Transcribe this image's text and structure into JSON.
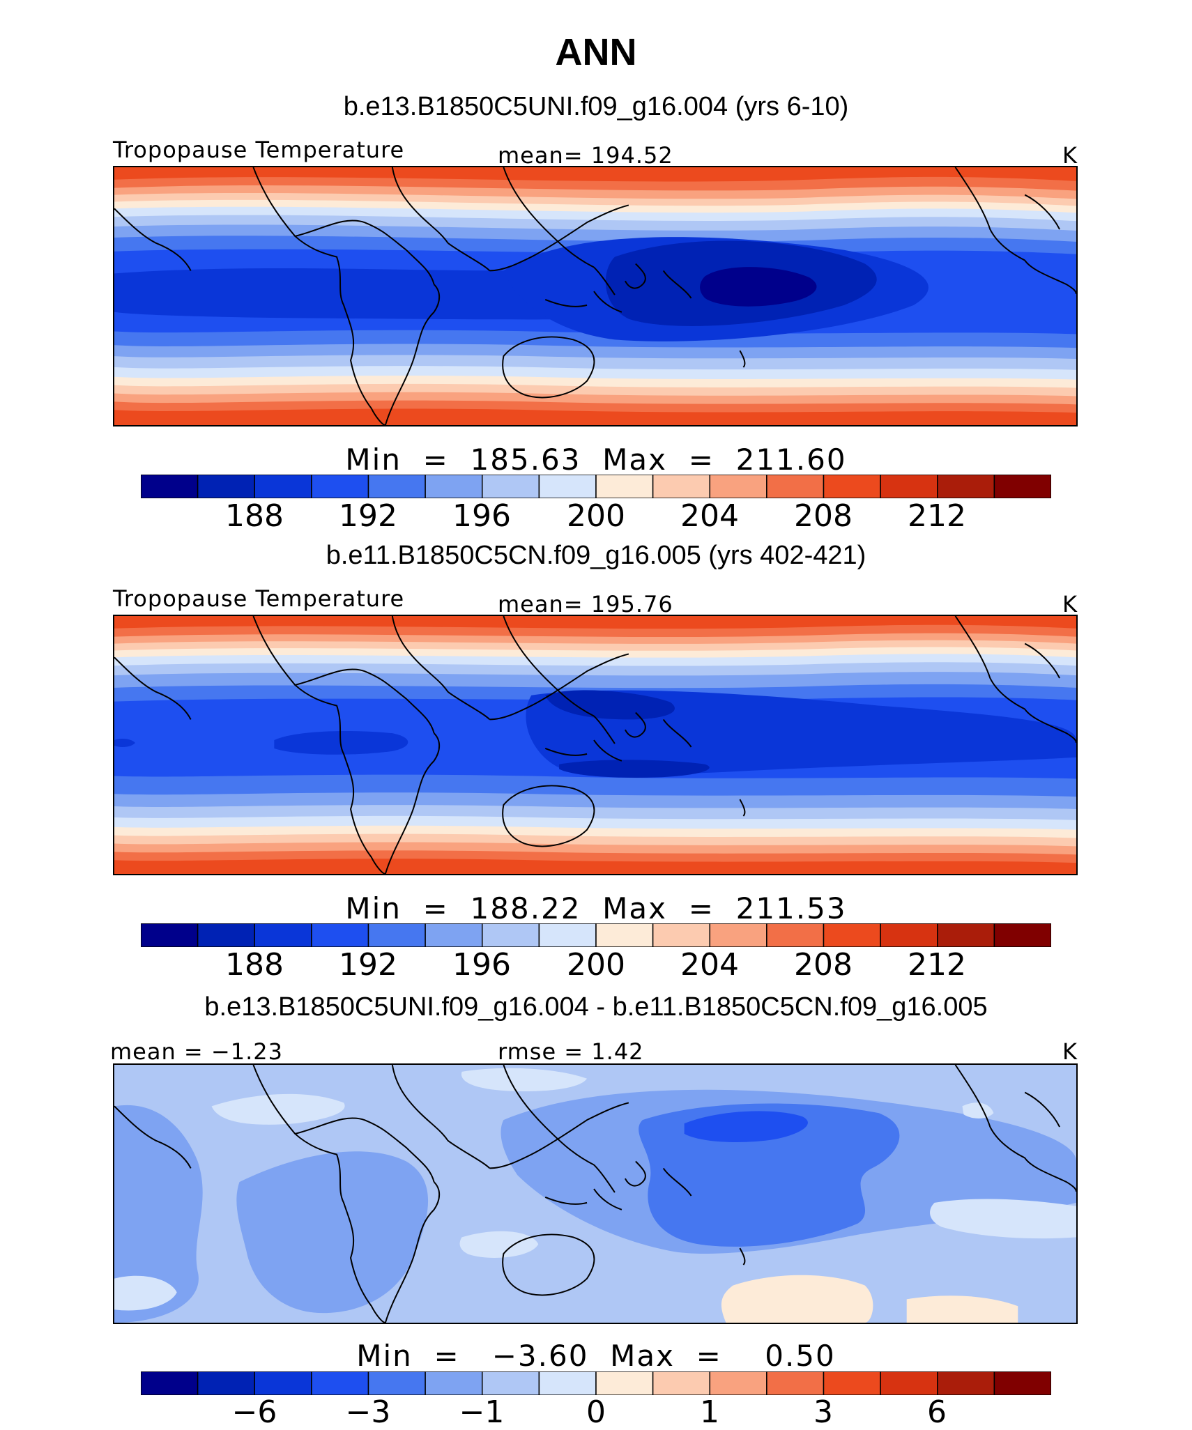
{
  "title": "ANN",
  "panels": [
    {
      "case_title": "b.e13.B1850C5UNI.f09_g16.004 (yrs 6-10)",
      "left_label": "Tropopause Temperature",
      "center_label": "mean=  194.52",
      "units": "K",
      "minmax": "Min  =  185.63  Max  =  211.60",
      "colorbar_ticks": [
        "188",
        "192",
        "196",
        "200",
        "204",
        "208",
        "212"
      ]
    },
    {
      "case_title": "b.e11.B1850C5CN.f09_g16.005 (yrs 402-421)",
      "left_label": "Tropopause Temperature",
      "center_label": "mean=  195.76",
      "units": "K",
      "minmax": "Min  =  188.22  Max  =  211.53",
      "colorbar_ticks": [
        "188",
        "192",
        "196",
        "200",
        "204",
        "208",
        "212"
      ]
    },
    {
      "case_title": "b.e13.B1850C5UNI.f09_g16.004 - b.e11.B1850C5CN.f09_g16.005",
      "left_label": "mean  =   −1.23",
      "center_label": "rmse  =    1.42",
      "units": "K",
      "minmax": "Min  =   −3.60  Max  =    0.50",
      "colorbar_ticks": [
        "−6",
        "−3",
        "−1",
        "0",
        "1",
        "3",
        "6"
      ]
    }
  ],
  "colorbar_colors": [
    "#00008b",
    "#0022b4",
    "#0a36d8",
    "#1e4ff0",
    "#4677f0",
    "#7ea3f2",
    "#afc7f5",
    "#d6e5fb",
    "#fdebd8",
    "#fccbb0",
    "#f9a27f",
    "#f26f47",
    "#ec4a1e",
    "#d73311",
    "#aa1d0a",
    "#800000"
  ],
  "map_colors": {
    "deep_navy": "#00008b",
    "navy": "#0022b4",
    "blue": "#0a36d8",
    "mid_blue": "#1e4ff0",
    "light_blue": "#4677f0",
    "pale_blue": "#7ea3f2",
    "paler_blue": "#afc7f5",
    "palest_blue": "#d6e5fb",
    "cream": "#fdebd8",
    "peach": "#fccbb0",
    "salmon": "#f9a27f",
    "orange": "#f26f47",
    "red_orange": "#ec4a1e"
  }
}
